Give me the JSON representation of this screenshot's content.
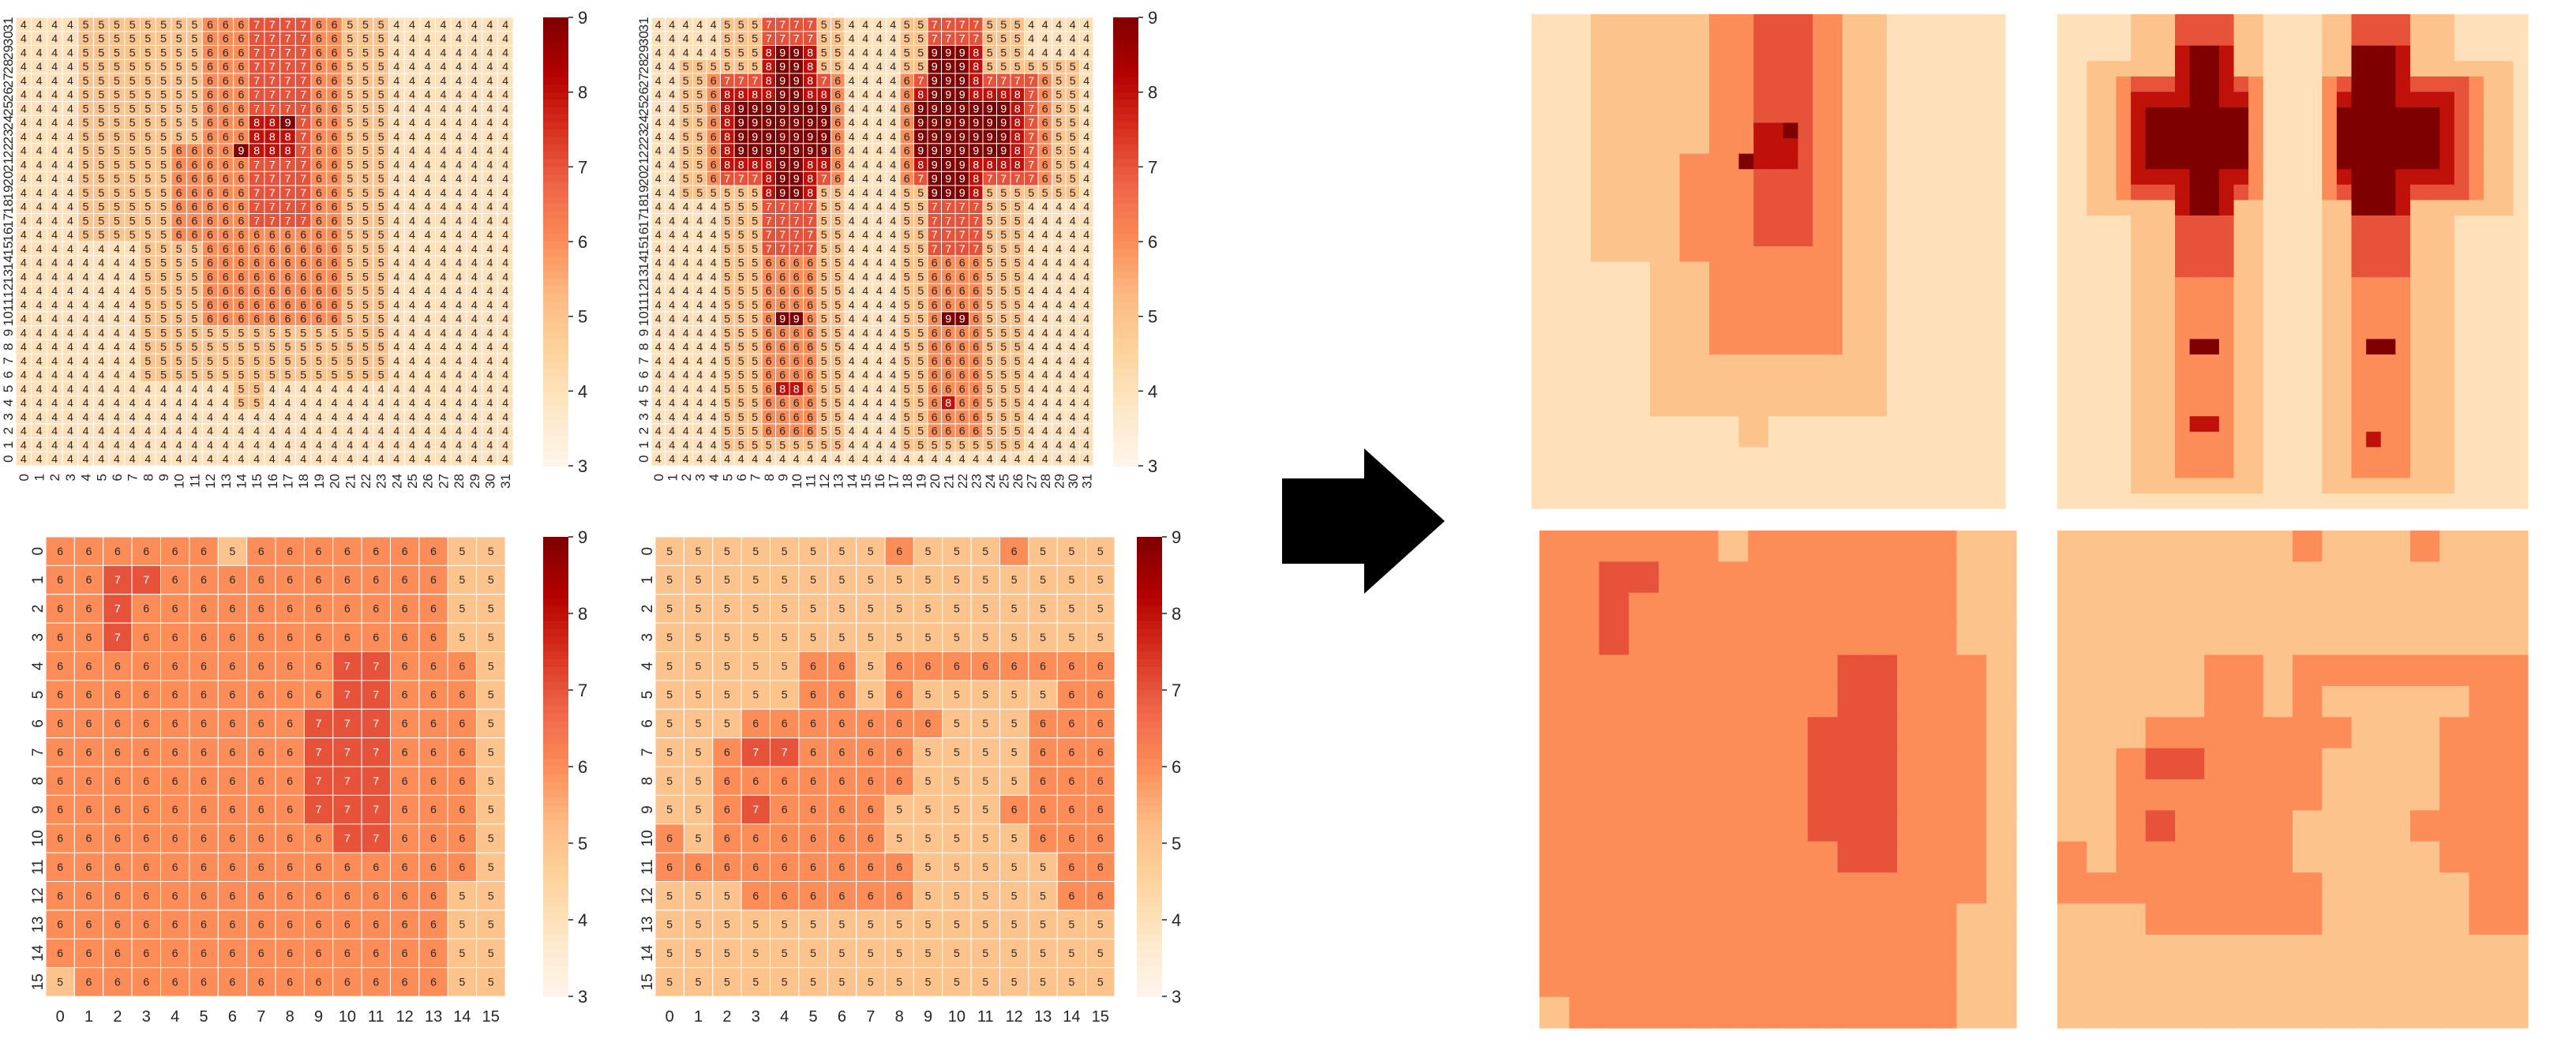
{
  "figure": {
    "arrow_icon": "right-arrow-icon",
    "colormap": [
      "#fff5eb",
      "#fee8c8",
      "#fdd49e",
      "#fdbb84",
      "#fc8d59",
      "#ef6548",
      "#d7301f",
      "#b30000",
      "#7f0000"
    ]
  },
  "chart_data": [
    {
      "id": "heatmap-a",
      "type": "heatmap",
      "grid_size": 32,
      "x_ticks": [
        "0",
        "1",
        "2",
        "3",
        "4",
        "5",
        "6",
        "7",
        "8",
        "9",
        "10",
        "11",
        "12",
        "13",
        "14",
        "15",
        "16",
        "17",
        "18",
        "19",
        "20",
        "21",
        "22",
        "23",
        "24",
        "25",
        "26",
        "27",
        "28",
        "29",
        "30",
        "31"
      ],
      "y_ticks": [
        "0",
        "1",
        "2",
        "3",
        "4",
        "5",
        "6",
        "7",
        "8",
        "9",
        "10",
        "11",
        "12",
        "13",
        "14",
        "15",
        "16",
        "17",
        "18",
        "19",
        "20",
        "21",
        "22",
        "23",
        "24",
        "25",
        "26",
        "27",
        "28",
        "29",
        "30",
        "31"
      ],
      "y_order": "bottom-to-top",
      "value_range": [
        3,
        9
      ],
      "colorbar_ticks": [
        "3",
        "4",
        "5",
        "6",
        "7",
        "8",
        "9"
      ],
      "annotated": true,
      "base_value": 4,
      "regions": [
        {
          "value": 5,
          "rows": [
            4,
            5
          ],
          "cols": [
            14,
            15
          ]
        },
        {
          "value": 5,
          "rows": [
            6,
            31
          ],
          "cols": [
            8,
            23
          ]
        },
        {
          "value": 5,
          "rows": [
            16,
            31
          ],
          "cols": [
            4,
            7
          ]
        },
        {
          "value": 6,
          "rows": [
            10,
            31
          ],
          "cols": [
            12,
            20
          ]
        },
        {
          "value": 6,
          "rows": [
            16,
            22
          ],
          "cols": [
            10,
            11
          ]
        },
        {
          "value": 7,
          "rows": [
            17,
            31
          ],
          "cols": [
            15,
            18
          ]
        },
        {
          "value": 8,
          "rows": [
            22,
            24
          ],
          "cols": [
            15,
            17
          ]
        },
        {
          "value": 9,
          "rows": [
            22,
            22
          ],
          "cols": [
            14,
            14
          ]
        },
        {
          "value": 9,
          "rows": [
            24,
            24
          ],
          "cols": [
            17,
            17
          ]
        }
      ]
    },
    {
      "id": "heatmap-b",
      "type": "heatmap",
      "grid_size": 32,
      "x_ticks": [
        "0",
        "1",
        "2",
        "3",
        "4",
        "5",
        "6",
        "7",
        "8",
        "9",
        "10",
        "11",
        "12",
        "13",
        "14",
        "15",
        "16",
        "17",
        "18",
        "19",
        "20",
        "21",
        "22",
        "23",
        "24",
        "25",
        "26",
        "27",
        "28",
        "29",
        "30",
        "31"
      ],
      "y_ticks": [
        "0",
        "1",
        "2",
        "3",
        "4",
        "5",
        "6",
        "7",
        "8",
        "9",
        "10",
        "11",
        "12",
        "13",
        "14",
        "15",
        "16",
        "17",
        "18",
        "19",
        "20",
        "21",
        "22",
        "23",
        "24",
        "25",
        "26",
        "27",
        "28",
        "29",
        "30",
        "31"
      ],
      "y_order": "bottom-to-top",
      "value_range": [
        3,
        9
      ],
      "colorbar_ticks": [
        "3",
        "4",
        "5",
        "6",
        "7",
        "8",
        "9"
      ],
      "annotated": true,
      "base_value": 4,
      "regions": [
        {
          "value": 5,
          "rows": [
            1,
            31
          ],
          "cols": [
            5,
            13
          ]
        },
        {
          "value": 5,
          "rows": [
            1,
            31
          ],
          "cols": [
            18,
            26
          ]
        },
        {
          "value": 5,
          "rows": [
            19,
            28
          ],
          "cols": [
            2,
            4
          ]
        },
        {
          "value": 5,
          "rows": [
            19,
            28
          ],
          "cols": [
            27,
            30
          ]
        },
        {
          "value": 6,
          "rows": [
            2,
            31
          ],
          "cols": [
            8,
            11
          ]
        },
        {
          "value": 6,
          "rows": [
            2,
            31
          ],
          "cols": [
            20,
            23
          ]
        },
        {
          "value": 6,
          "rows": [
            20,
            27
          ],
          "cols": [
            4,
            13
          ]
        },
        {
          "value": 6,
          "rows": [
            20,
            27
          ],
          "cols": [
            18,
            28
          ]
        },
        {
          "value": 7,
          "rows": [
            20,
            27
          ],
          "cols": [
            5,
            12
          ]
        },
        {
          "value": 7,
          "rows": [
            20,
            27
          ],
          "cols": [
            19,
            27
          ]
        },
        {
          "value": 7,
          "rows": [
            15,
            31
          ],
          "cols": [
            8,
            11
          ]
        },
        {
          "value": 7,
          "rows": [
            15,
            31
          ],
          "cols": [
            20,
            23
          ]
        },
        {
          "value": 8,
          "rows": [
            19,
            29
          ],
          "cols": [
            8,
            11
          ]
        },
        {
          "value": 8,
          "rows": [
            19,
            29
          ],
          "cols": [
            20,
            23
          ]
        },
        {
          "value": 8,
          "rows": [
            21,
            26
          ],
          "cols": [
            5,
            12
          ]
        },
        {
          "value": 8,
          "rows": [
            21,
            26
          ],
          "cols": [
            19,
            26
          ]
        },
        {
          "value": 9,
          "rows": [
            19,
            29
          ],
          "cols": [
            9,
            10
          ]
        },
        {
          "value": 9,
          "rows": [
            19,
            29
          ],
          "cols": [
            20,
            22
          ]
        },
        {
          "value": 9,
          "rows": [
            22,
            25
          ],
          "cols": [
            6,
            12
          ]
        },
        {
          "value": 9,
          "rows": [
            22,
            25
          ],
          "cols": [
            19,
            25
          ]
        },
        {
          "value": 9,
          "rows": [
            10,
            10
          ],
          "cols": [
            9,
            10
          ]
        },
        {
          "value": 9,
          "rows": [
            10,
            10
          ],
          "cols": [
            21,
            22
          ]
        },
        {
          "value": 8,
          "rows": [
            5,
            5
          ],
          "cols": [
            9,
            10
          ]
        },
        {
          "value": 8,
          "rows": [
            4,
            4
          ],
          "cols": [
            21,
            21
          ]
        }
      ]
    },
    {
      "id": "heatmap-c",
      "type": "heatmap",
      "grid_size": 16,
      "x_ticks": [
        "0",
        "1",
        "2",
        "3",
        "4",
        "5",
        "6",
        "7",
        "8",
        "9",
        "10",
        "11",
        "12",
        "13",
        "14",
        "15"
      ],
      "y_ticks": [
        "0",
        "1",
        "2",
        "3",
        "4",
        "5",
        "6",
        "7",
        "8",
        "9",
        "10",
        "11",
        "12",
        "13",
        "14",
        "15"
      ],
      "y_order": "top-to-bottom",
      "value_range": [
        3,
        9
      ],
      "colorbar_ticks": [
        "3",
        "4",
        "5",
        "6",
        "7",
        "8",
        "9"
      ],
      "annotated": true,
      "base_value": 6,
      "regions": [
        {
          "value": 5,
          "rows": [
            0,
            15
          ],
          "cols": [
            14,
            15
          ]
        },
        {
          "value": 6,
          "rows": [
            4,
            11
          ],
          "cols": [
            14,
            14
          ]
        },
        {
          "value": 5,
          "rows": [
            0,
            0
          ],
          "cols": [
            6,
            6
          ]
        },
        {
          "value": 5,
          "rows": [
            15,
            15
          ],
          "cols": [
            0,
            0
          ]
        },
        {
          "value": 7,
          "rows": [
            1,
            3
          ],
          "cols": [
            2,
            2
          ]
        },
        {
          "value": 7,
          "rows": [
            1,
            1
          ],
          "cols": [
            3,
            3
          ]
        },
        {
          "value": 7,
          "rows": [
            4,
            10
          ],
          "cols": [
            10,
            11
          ]
        },
        {
          "value": 7,
          "rows": [
            6,
            9
          ],
          "cols": [
            9,
            9
          ]
        }
      ]
    },
    {
      "id": "heatmap-d",
      "type": "heatmap",
      "grid_size": 16,
      "x_ticks": [
        "0",
        "1",
        "2",
        "3",
        "4",
        "5",
        "6",
        "7",
        "8",
        "9",
        "10",
        "11",
        "12",
        "13",
        "14",
        "15"
      ],
      "y_ticks": [
        "0",
        "1",
        "2",
        "3",
        "4",
        "5",
        "6",
        "7",
        "8",
        "9",
        "10",
        "11",
        "12",
        "13",
        "14",
        "15"
      ],
      "y_order": "top-to-bottom",
      "value_range": [
        3,
        9
      ],
      "colorbar_ticks": [
        "3",
        "4",
        "5",
        "6",
        "7",
        "8",
        "9"
      ],
      "annotated": true,
      "base_value": 5,
      "regions": [
        {
          "value": 6,
          "rows": [
            0,
            0
          ],
          "cols": [
            8,
            8
          ]
        },
        {
          "value": 6,
          "rows": [
            0,
            0
          ],
          "cols": [
            12,
            12
          ]
        },
        {
          "value": 6,
          "rows": [
            4,
            5
          ],
          "cols": [
            5,
            6
          ]
        },
        {
          "value": 6,
          "rows": [
            4,
            4
          ],
          "cols": [
            8,
            15
          ]
        },
        {
          "value": 6,
          "rows": [
            5,
            5
          ],
          "cols": [
            8,
            8
          ]
        },
        {
          "value": 6,
          "rows": [
            5,
            5
          ],
          "cols": [
            14,
            15
          ]
        },
        {
          "value": 6,
          "rows": [
            6,
            6
          ],
          "cols": [
            3,
            9
          ]
        },
        {
          "value": 6,
          "rows": [
            7,
            12
          ],
          "cols": [
            2,
            8
          ]
        },
        {
          "value": 6,
          "rows": [
            6,
            10
          ],
          "cols": [
            13,
            15
          ]
        },
        {
          "value": 6,
          "rows": [
            9,
            9
          ],
          "cols": [
            12,
            12
          ]
        },
        {
          "value": 6,
          "rows": [
            10,
            10
          ],
          "cols": [
            0,
            0
          ]
        },
        {
          "value": 6,
          "rows": [
            11,
            11
          ],
          "cols": [
            0,
            1
          ]
        },
        {
          "value": 6,
          "rows": [
            11,
            12
          ],
          "cols": [
            14,
            15
          ]
        },
        {
          "value": 5,
          "rows": [
            9,
            10
          ],
          "cols": [
            8,
            8
          ]
        },
        {
          "value": 5,
          "rows": [
            12,
            12
          ],
          "cols": [
            2,
            2
          ]
        },
        {
          "value": 7,
          "rows": [
            7,
            7
          ],
          "cols": [
            3,
            4
          ]
        },
        {
          "value": 7,
          "rows": [
            9,
            9
          ],
          "cols": [
            3,
            3
          ]
        }
      ]
    }
  ]
}
